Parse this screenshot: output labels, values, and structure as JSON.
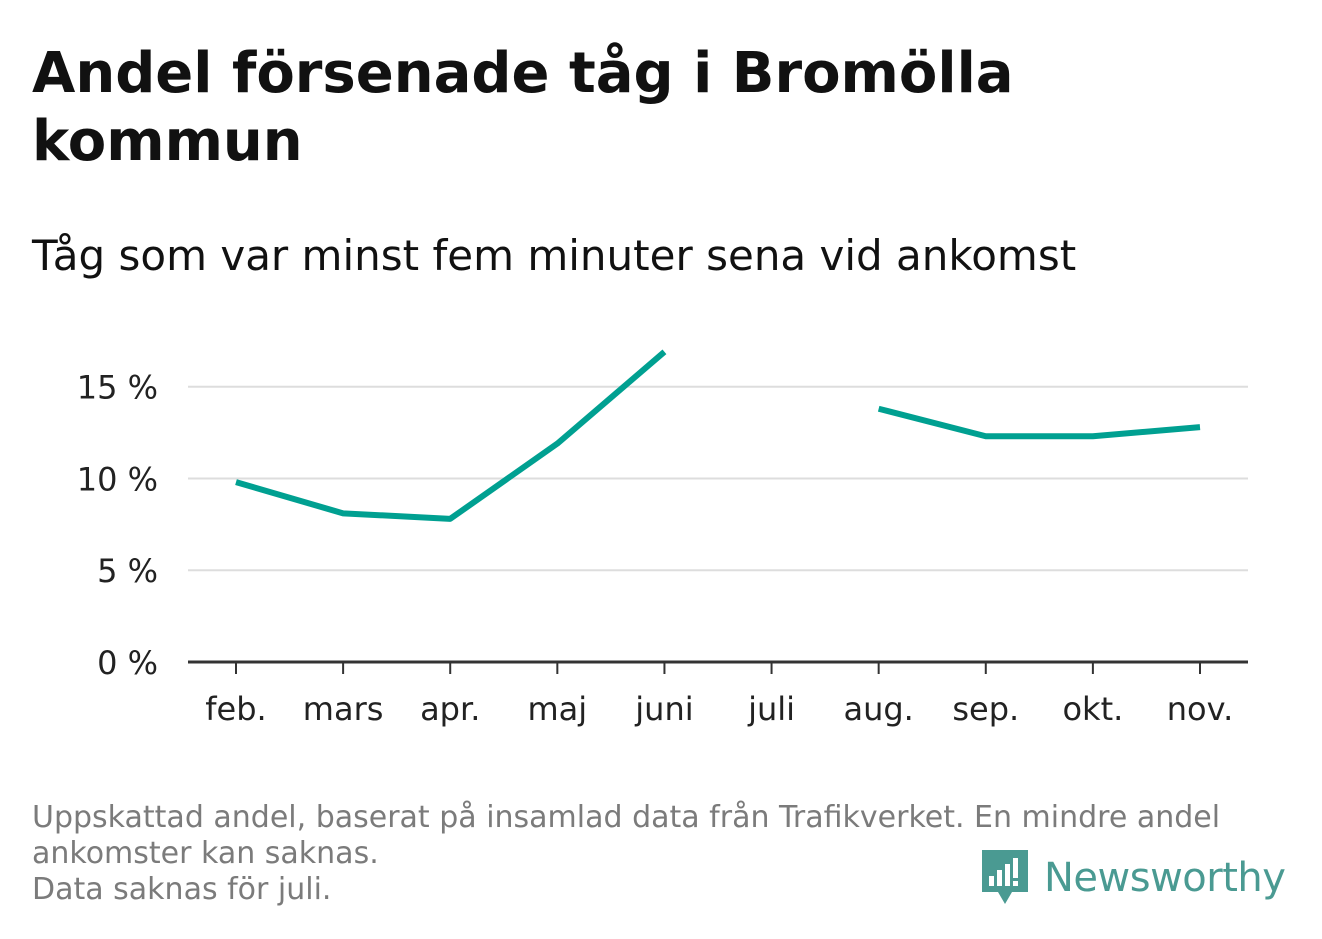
{
  "header": {
    "title": "Andel försenade tåg i Bromölla kommun",
    "subtitle": "Tåg som var minst fem minuter sena vid ankomst"
  },
  "footnote": {
    "line1": "Uppskattad andel, baserat på insamlad data från Trafikverket. En mindre andel",
    "line2": "ankomster kan saknas.",
    "line3": "Data saknas för juli."
  },
  "logo": {
    "text": "Newsworthy",
    "icon": "newsworthy-bar-chart-icon",
    "color": "#4a9a92"
  },
  "chart_data": {
    "type": "line",
    "categories": [
      "feb.",
      "mars",
      "apr.",
      "maj",
      "juni",
      "juli",
      "aug.",
      "sep.",
      "okt.",
      "nov."
    ],
    "series": [
      {
        "values": [
          9.8,
          8.1,
          7.8,
          11.9,
          16.9,
          null,
          13.8,
          12.3,
          12.3,
          12.8
        ],
        "color": "#00a091"
      }
    ],
    "yticks": [
      0,
      5,
      10,
      15
    ],
    "ytick_labels": [
      "0 %",
      "5 %",
      "10 %",
      "15 %"
    ],
    "ylim": [
      0,
      17
    ],
    "grid": true,
    "colors": {
      "grid": "#dddddd",
      "axis": "#333333",
      "text": "#222222"
    }
  }
}
